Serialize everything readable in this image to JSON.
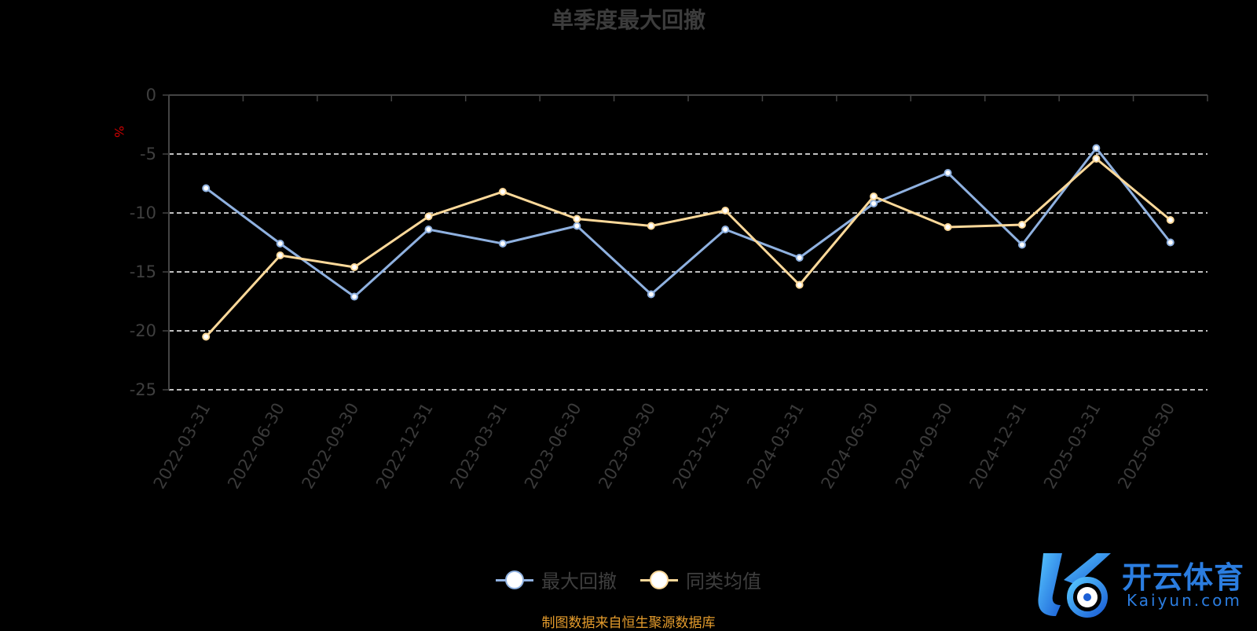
{
  "chart_data": {
    "type": "line",
    "title": "单季度最大回撤",
    "ylabel": "%",
    "ylim": [
      -25,
      0
    ],
    "yticks": [
      0,
      -5,
      -10,
      -15,
      -20,
      -25
    ],
    "grid": true,
    "legend_position": "bottom",
    "categories": [
      "2022-03-31",
      "2022-06-30",
      "2022-09-30",
      "2022-12-31",
      "2023-03-31",
      "2023-06-30",
      "2023-09-30",
      "2023-12-31",
      "2024-03-31",
      "2024-06-30",
      "2024-09-30",
      "2024-12-31",
      "2025-03-31",
      "2025-06-30"
    ],
    "series": [
      {
        "name": "最大回撤",
        "color": "#8fb1e0",
        "values": [
          -7.9,
          -12.6,
          -17.1,
          -11.4,
          -12.6,
          -11.1,
          -16.9,
          -11.4,
          -13.8,
          -9.2,
          -6.6,
          -12.7,
          -4.5,
          -12.5
        ]
      },
      {
        "name": "同类均值",
        "color": "#fdd99a",
        "values": [
          -20.5,
          -13.6,
          -14.6,
          -10.3,
          -8.2,
          -10.5,
          -11.1,
          -9.8,
          -16.1,
          -8.6,
          -11.2,
          -11.0,
          -5.4,
          -10.6
        ]
      }
    ]
  },
  "source_text": "制图数据来自恒生聚源数据库",
  "source_color": "#e59c2c",
  "title_color": "#3c3c3c",
  "ylabel_color": "#cc0000",
  "watermark": {
    "cn": "开云体育",
    "en": "Kaiyun.com",
    "color": "#2b7de0"
  }
}
